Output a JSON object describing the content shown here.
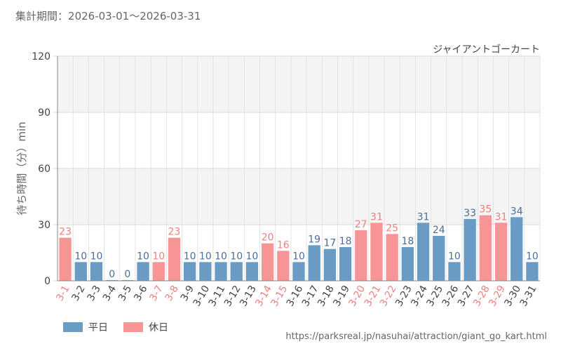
{
  "header": {
    "period_label": "集計期間",
    "period_sep": "：",
    "period_range": "2026-03-01～2026-03-31"
  },
  "chart_data": {
    "type": "bar",
    "title": "ジャイアントゴーカート",
    "xlabel": "",
    "ylabel": "待ち時間（分）min",
    "ylim": [
      0,
      120
    ],
    "yticks": [
      0,
      30,
      60,
      90,
      120
    ],
    "grid": true,
    "legend_position": "bottom-left",
    "categories": [
      "3-1",
      "3-2",
      "3-3",
      "3-4",
      "3-5",
      "3-6",
      "3-7",
      "3-8",
      "3-9",
      "3-10",
      "3-11",
      "3-12",
      "3-13",
      "3-14",
      "3-15",
      "3-16",
      "3-17",
      "3-18",
      "3-19",
      "3-20",
      "3-21",
      "3-22",
      "3-23",
      "3-24",
      "3-25",
      "3-26",
      "3-27",
      "3-28",
      "3-29",
      "3-30",
      "3-31"
    ],
    "values": [
      23,
      10,
      10,
      0,
      0,
      10,
      10,
      23,
      10,
      10,
      10,
      10,
      10,
      20,
      16,
      10,
      19,
      17,
      18,
      27,
      31,
      25,
      18,
      31,
      24,
      10,
      33,
      35,
      31,
      34,
      10
    ],
    "day_type": [
      "holiday",
      "weekday",
      "weekday",
      "weekday",
      "weekday",
      "weekday",
      "holiday",
      "holiday",
      "weekday",
      "weekday",
      "weekday",
      "weekday",
      "weekday",
      "holiday",
      "holiday",
      "weekday",
      "weekday",
      "weekday",
      "weekday",
      "holiday",
      "holiday",
      "holiday",
      "weekday",
      "weekday",
      "weekday",
      "weekday",
      "weekday",
      "holiday",
      "holiday",
      "weekday",
      "weekday"
    ],
    "series": [
      {
        "name": "平日",
        "key": "weekday",
        "color": "#6a9bc4"
      },
      {
        "name": "休日",
        "key": "holiday",
        "color": "#f79596"
      }
    ],
    "holiday_label_color": "#f08080",
    "weekday_label_color": "#4a6f9a"
  },
  "footer": {
    "source_url": "https://parksreal.jp/nasuhai/attraction/giant_go_kart.html"
  }
}
